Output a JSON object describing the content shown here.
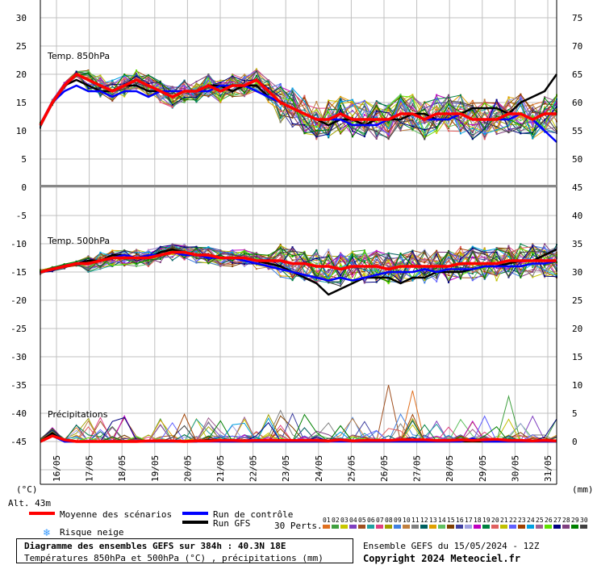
{
  "chart_data": {
    "type": "line",
    "title": "Diagramme des ensembles GEFS sur 384h : 40.3N 18E",
    "subtitle": "Températures 850hPa et 500hPa (°C) , précipitations (mm)",
    "run_info": "Ensemble GEFS du 15/05/2024 - 12Z",
    "copyright": "Copyright 2024 Meteociel.fr",
    "altitude": "Alt. 43m",
    "unit_left": "(°C)",
    "unit_right": "(mm)",
    "x_tick_labels": [
      "16/05",
      "17/05",
      "18/05",
      "19/05",
      "20/05",
      "21/05",
      "22/05",
      "23/05",
      "24/05",
      "25/05",
      "26/05",
      "27/05",
      "28/05",
      "29/05",
      "30/05",
      "31/05"
    ],
    "panels": [
      {
        "label": "Temp. 850hPa",
        "left_ticks": [
          "30",
          "25",
          "20",
          "15",
          "10",
          "5",
          "0"
        ],
        "right_ticks": [
          "75",
          "70",
          "65",
          "60",
          "55",
          "50"
        ],
        "ylim": [
          0,
          30
        ],
        "mean": [
          11,
          15,
          18,
          20,
          19,
          18,
          17,
          18,
          19,
          18,
          17,
          16,
          17,
          17,
          18,
          17,
          18,
          18,
          19,
          17,
          15,
          14,
          13,
          12,
          12,
          13,
          12,
          12,
          12,
          12,
          13,
          13,
          12,
          13,
          13,
          13,
          12,
          12,
          12,
          13,
          13,
          12,
          13,
          13
        ],
        "control": [
          11,
          15,
          17,
          18,
          17,
          17,
          16,
          17,
          17,
          16,
          17,
          17,
          17,
          17,
          17,
          18,
          18,
          18,
          17,
          16,
          15,
          14,
          13,
          12,
          12,
          12,
          11,
          11,
          11,
          12,
          13,
          13,
          12,
          12,
          12,
          13,
          12,
          12,
          12,
          12,
          13,
          12,
          10,
          8
        ],
        "gfs": [
          11,
          15,
          18,
          19,
          18,
          17,
          17,
          18,
          18,
          17,
          17,
          16,
          17,
          17,
          18,
          18,
          17,
          18,
          18,
          16,
          15,
          14,
          13,
          12,
          11,
          12,
          12,
          11,
          12,
          12,
          12,
          13,
          13,
          12,
          12,
          13,
          14,
          14,
          14,
          13,
          15,
          16,
          17,
          20
        ]
      },
      {
        "label": "Temp. 500hPa",
        "left_ticks": [
          "-5",
          "-10",
          "-15",
          "-20",
          "-25",
          "-30",
          "-35",
          "-40",
          "-45"
        ],
        "right_ticks": [
          "45",
          "40",
          "35",
          "30",
          "25",
          "20",
          "15",
          "10",
          "5",
          "0"
        ],
        "ylim": [
          -45,
          -1
        ],
        "mean": [
          -15,
          -14.5,
          -14,
          -13.5,
          -13.5,
          -13,
          -12.5,
          -12.5,
          -12.5,
          -12.5,
          -12,
          -11.5,
          -11.5,
          -12,
          -12,
          -12.5,
          -12.5,
          -12.5,
          -13,
          -13,
          -13,
          -13.5,
          -13.5,
          -14,
          -14,
          -14.5,
          -14,
          -14,
          -14,
          -14.5,
          -14,
          -14,
          -14,
          -14,
          -14,
          -13.5,
          -13.5,
          -13.5,
          -13.5,
          -13,
          -13,
          -13,
          -13,
          -13
        ],
        "control": [
          -15,
          -14.5,
          -14,
          -13.5,
          -13.5,
          -13,
          -12.5,
          -12,
          -12.5,
          -12,
          -12,
          -11.5,
          -12,
          -12,
          -12.5,
          -12.5,
          -12.5,
          -13,
          -13.5,
          -14,
          -14.5,
          -15,
          -15.5,
          -16,
          -16.5,
          -16,
          -16.5,
          -16,
          -15.5,
          -15,
          -15,
          -15,
          -14.5,
          -15,
          -14.5,
          -14.5,
          -14.5,
          -14,
          -14,
          -14,
          -14,
          -13.5,
          -13.5,
          -13
        ],
        "gfs": [
          -15,
          -14.5,
          -14,
          -13.5,
          -13,
          -13,
          -12,
          -12,
          -12.5,
          -12.5,
          -11.5,
          -11,
          -11.5,
          -12,
          -12,
          -12.5,
          -12.5,
          -12.5,
          -13,
          -13.5,
          -14,
          -15,
          -16,
          -17,
          -19,
          -18,
          -17,
          -16,
          -16,
          -16,
          -17,
          -16,
          -16,
          -15,
          -15,
          -15,
          -14.5,
          -14,
          -14,
          -13.5,
          -13,
          -13,
          -12,
          -11
        ]
      },
      {
        "label": "Précipitations",
        "ylim": [
          0,
          15
        ],
        "mean": [
          0,
          1,
          0.3,
          0,
          0,
          0,
          0,
          0,
          0,
          0.1,
          0.1,
          0.1,
          0,
          0.1,
          0.1,
          0.2,
          0.2,
          0.1,
          0.2,
          0.2,
          0.2,
          0.2,
          0.2,
          0.2,
          0.1,
          0.3,
          0.1,
          0.2,
          0.2,
          0.2,
          0.3,
          0.3,
          0.3,
          0.2,
          0.2,
          0.3,
          0.2,
          0.3,
          0.4,
          0.2,
          0.2,
          0.1,
          0.2,
          0.1
        ],
        "control": [
          0,
          1,
          0,
          0,
          0,
          0,
          0,
          0,
          0,
          0,
          0,
          0,
          0,
          0,
          0,
          0,
          0,
          0,
          0,
          0,
          0,
          0,
          0,
          0,
          0,
          0,
          0,
          0,
          0,
          0,
          0,
          0,
          0,
          0,
          0,
          0,
          0.5,
          0,
          0,
          0,
          0,
          0,
          0,
          0
        ],
        "gfs": [
          0,
          1.5,
          0,
          0,
          0,
          0,
          0,
          0,
          0,
          0,
          0,
          0,
          0,
          0,
          0.3,
          0,
          0,
          0,
          0,
          0,
          0,
          0,
          0,
          0,
          0,
          0.3,
          0,
          0,
          0,
          0,
          0,
          0,
          0,
          0,
          0,
          0,
          0,
          0,
          0,
          0,
          0,
          0,
          0,
          0
        ]
      }
    ],
    "legend": {
      "mean": "Moyenne des scénarios",
      "control": "Run de contrôle",
      "gfs": "Run GFS",
      "snow": "Risque neige",
      "perts_label": "30 Perts.",
      "pert_numbers": [
        "01",
        "02",
        "03",
        "04",
        "05",
        "06",
        "07",
        "08",
        "09",
        "10",
        "11",
        "12",
        "13",
        "14",
        "15",
        "16",
        "17",
        "18",
        "19",
        "20",
        "21",
        "22",
        "23",
        "24",
        "25",
        "26",
        "27",
        "28",
        "29",
        "30"
      ]
    },
    "colors": {
      "mean": "#ff0000",
      "control": "#0000ff",
      "gfs": "#000000",
      "snow": "#3399ff",
      "grid": "#c0c0c0",
      "perts": [
        "#e07020",
        "#40a040",
        "#c8c800",
        "#8040c0",
        "#a05020",
        "#20a0a0",
        "#e04080",
        "#a0a000",
        "#4080e0",
        "#c08040",
        "#808080",
        "#006060",
        "#e0a000",
        "#60c060",
        "#804000",
        "#4040a0",
        "#a0a0e0",
        "#c000c0",
        "#008040",
        "#e06060",
        "#c0c000",
        "#6060ff",
        "#a04000",
        "#00a0e0",
        "#a06090",
        "#60e000",
        "#000080",
        "#804080",
        "#008000",
        "#404040"
      ]
    }
  }
}
